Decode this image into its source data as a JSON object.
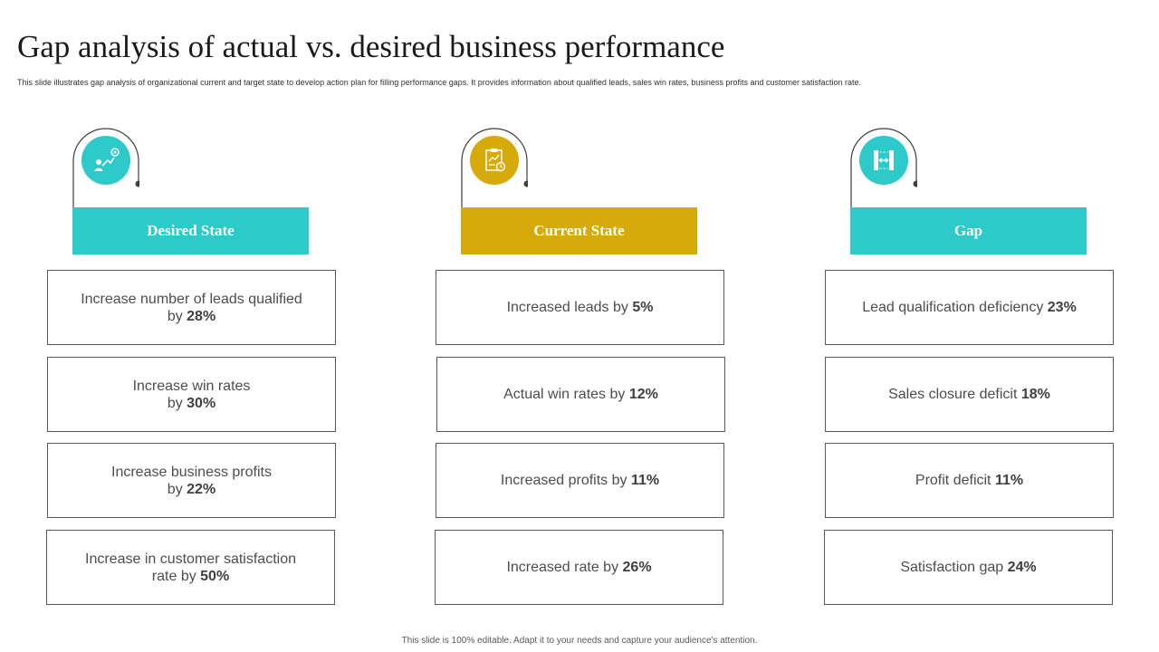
{
  "title": "Gap analysis  of actual vs. desired business performance",
  "subtitle": "This slide illustrates gap analysis of organizational current and target state to develop action plan  for filling performance gaps. It provides information about qualified leads, sales win rates, business profits and customer satisfaction rate.",
  "colors": {
    "teal": "#2ECACA",
    "gold": "#D6AA0B",
    "line": "#404040"
  },
  "columns": [
    {
      "header": "Desired State",
      "icon": "target-growth-icon",
      "color": "#2ECACA",
      "cards": [
        {
          "line1": "Increase  number of leads qualified",
          "line2_prefix": "by ",
          "value": "28%"
        },
        {
          "line1": "Increase  win rates",
          "line2_prefix": "by ",
          "value": "30%"
        },
        {
          "line1": "Increase  business profits",
          "line2_prefix": "by ",
          "value": "22%"
        },
        {
          "line1": "Increase  in customer satisfaction",
          "line2_prefix": "rate by ",
          "value": "50%"
        }
      ]
    },
    {
      "header": "Current State",
      "icon": "report-chart-icon",
      "color": "#D6AA0B",
      "cards": [
        {
          "text": "Increased leads by ",
          "value": "5%"
        },
        {
          "text": "Actual win rates by ",
          "value": "12%"
        },
        {
          "text": "Increased profits by ",
          "value": "11%"
        },
        {
          "text": "Increased rate by ",
          "value": "26%"
        }
      ]
    },
    {
      "header": "Gap",
      "icon": "gap-measure-icon",
      "color": "#2ECACA",
      "cards": [
        {
          "text": "Lead qualification deficiency ",
          "value": "23%"
        },
        {
          "text": "Sales closure deficit ",
          "value": "18%"
        },
        {
          "text": "Profit deficit ",
          "value": "11%"
        },
        {
          "text": "Satisfaction gap ",
          "value": "24%"
        }
      ]
    }
  ],
  "footer": "This slide is 100% editable.  Adapt it to your needs and capture your audience's attention."
}
